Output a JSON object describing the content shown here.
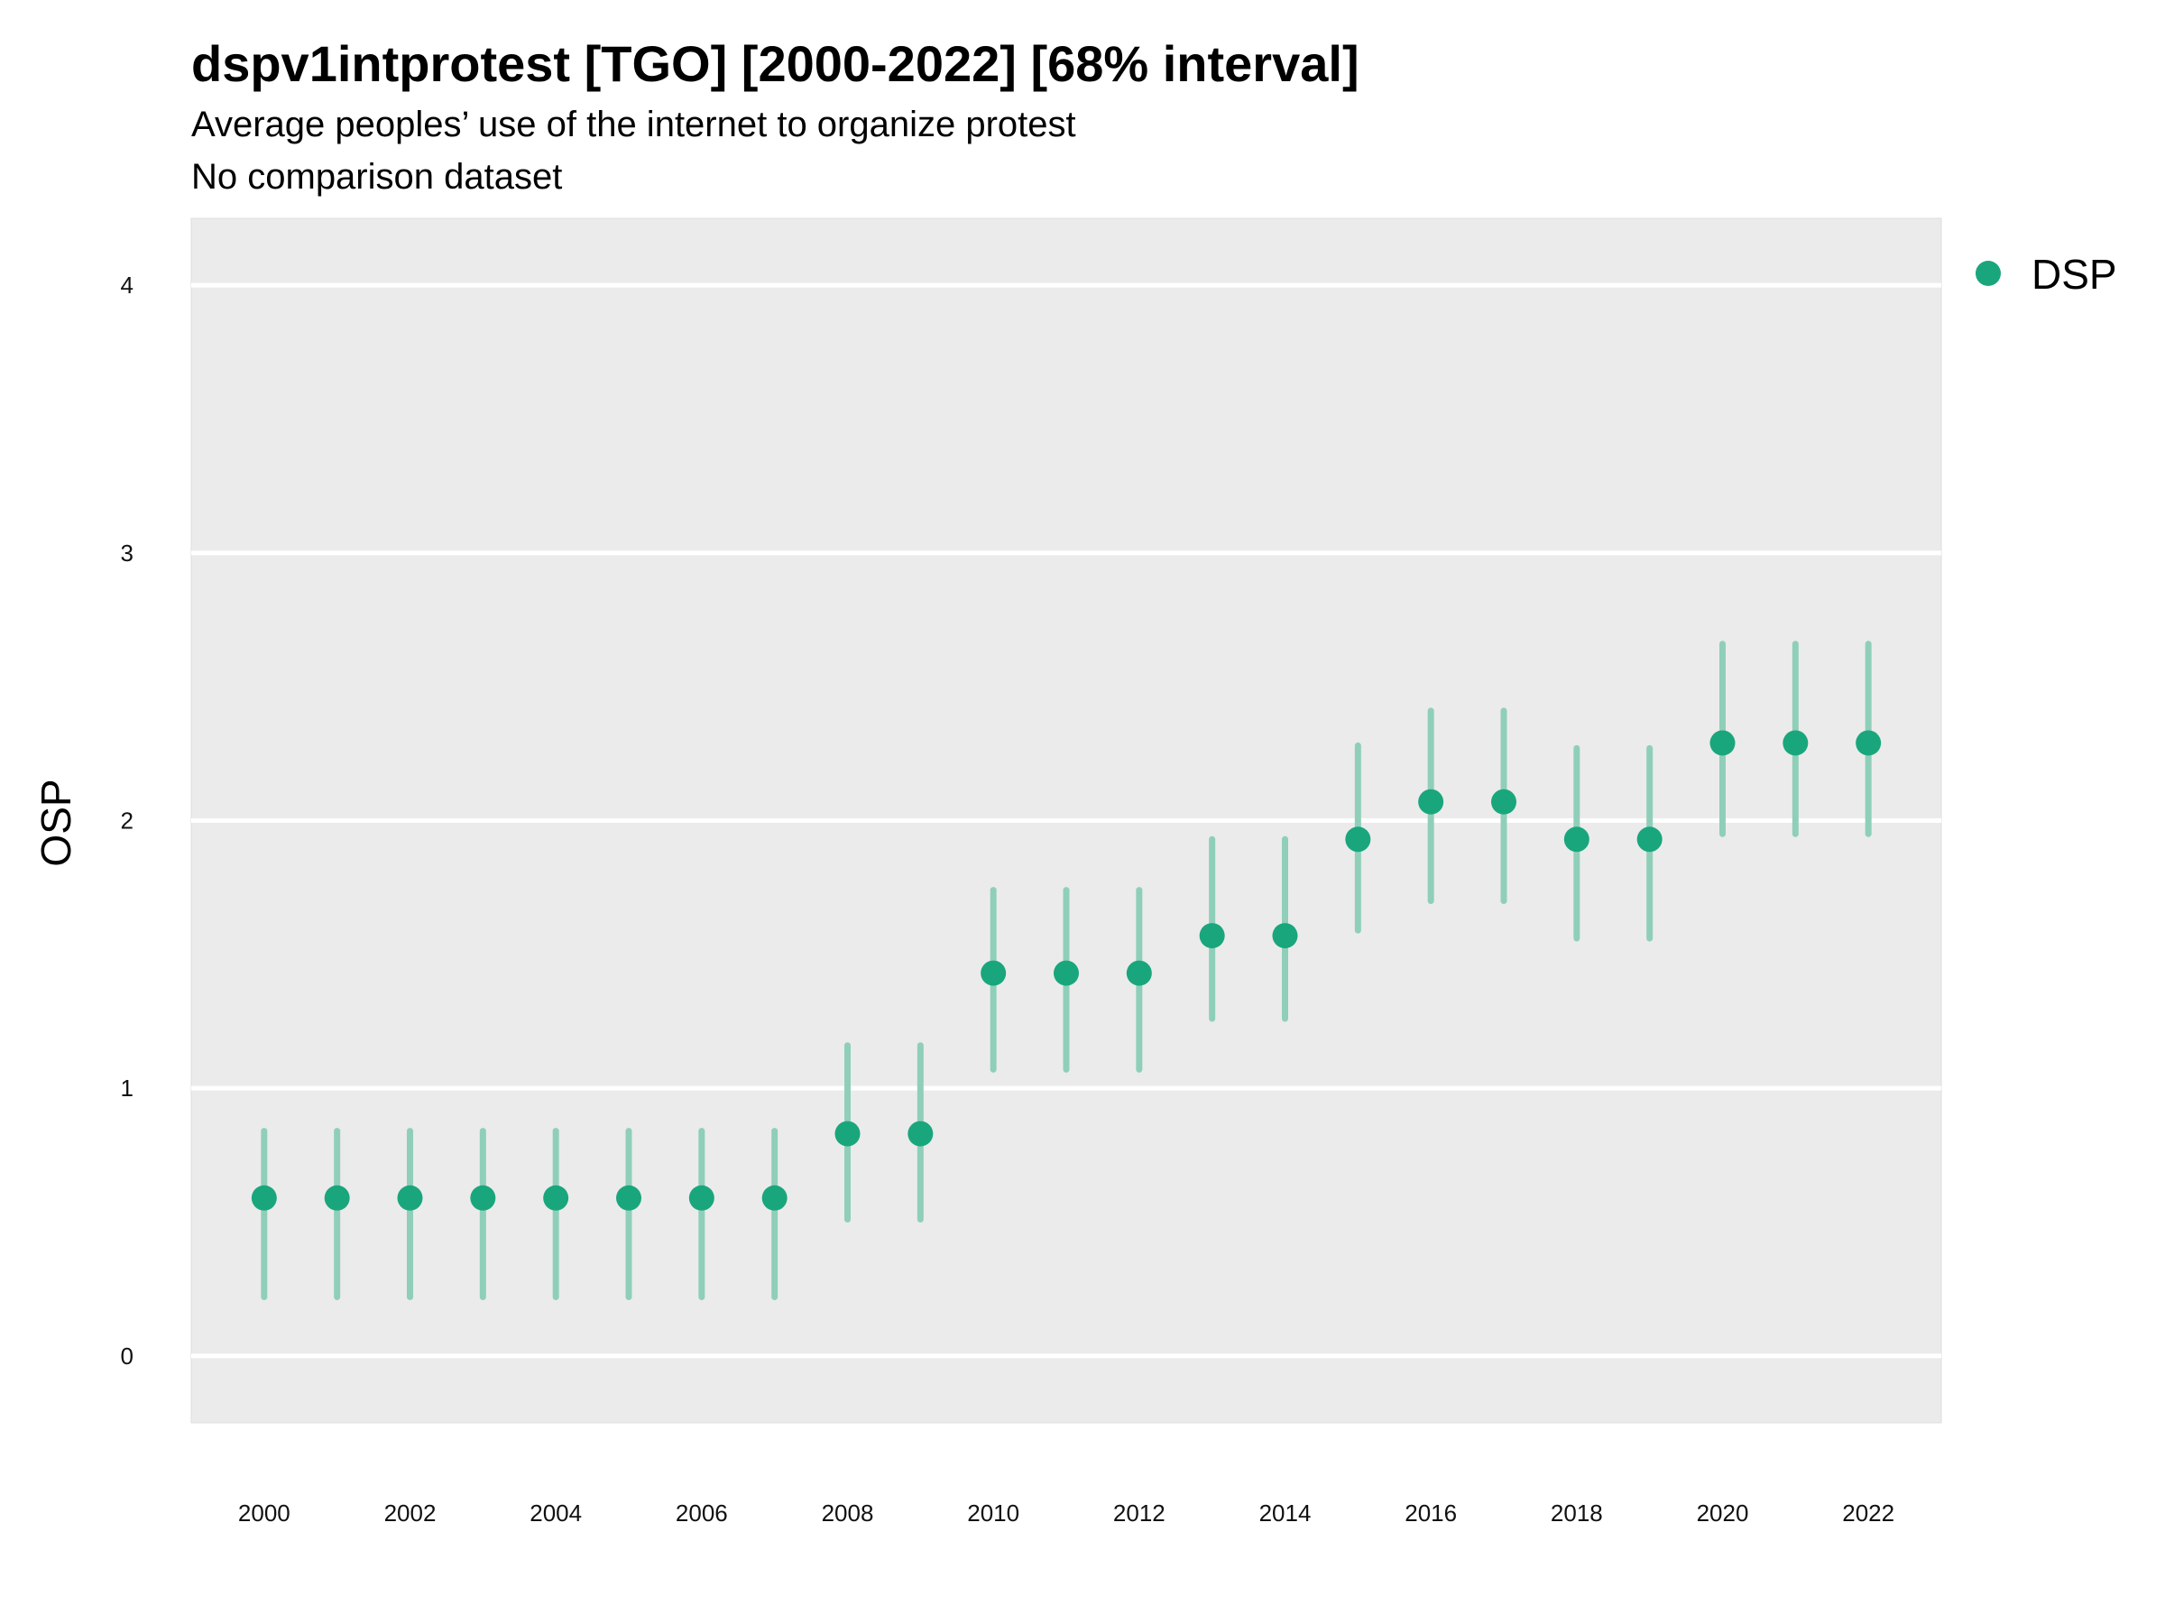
{
  "title": "dspv1intprotest [TGO] [2000-2022] [68% interval]",
  "subtitle": "Average peoples’ use of the internet to organize protest",
  "caption": "No comparison dataset",
  "chart_data": {
    "type": "scatter",
    "title": "dspv1intprotest [TGO] [2000-2022] [68% interval]",
    "xlabel": "",
    "ylabel": "OSP",
    "xlim": [
      1999,
      2023
    ],
    "ylim": [
      -0.25,
      4.25
    ],
    "x_ticks": [
      2000,
      2002,
      2004,
      2006,
      2008,
      2010,
      2012,
      2014,
      2016,
      2018,
      2020,
      2022
    ],
    "y_ticks": [
      0,
      1,
      2,
      3,
      4
    ],
    "grid": true,
    "legend_position": "top-right",
    "series": [
      {
        "name": "DSP",
        "color": "#1aa67c",
        "interval_color": "#8fcfba",
        "x": [
          2000,
          2001,
          2002,
          2003,
          2004,
          2005,
          2006,
          2007,
          2008,
          2009,
          2010,
          2011,
          2012,
          2013,
          2014,
          2015,
          2016,
          2017,
          2018,
          2019,
          2020,
          2021,
          2022
        ],
        "y": [
          0.59,
          0.59,
          0.59,
          0.59,
          0.59,
          0.59,
          0.59,
          0.59,
          0.83,
          0.83,
          1.43,
          1.43,
          1.43,
          1.57,
          1.57,
          1.93,
          2.07,
          2.07,
          1.93,
          1.93,
          2.29,
          2.29,
          2.29
        ],
        "lower": [
          0.22,
          0.22,
          0.22,
          0.22,
          0.22,
          0.22,
          0.22,
          0.22,
          0.51,
          0.51,
          1.07,
          1.07,
          1.07,
          1.26,
          1.26,
          1.59,
          1.7,
          1.7,
          1.56,
          1.56,
          1.95,
          1.95,
          1.95
        ],
        "upper": [
          0.84,
          0.84,
          0.84,
          0.84,
          0.84,
          0.84,
          0.84,
          0.84,
          1.16,
          1.16,
          1.74,
          1.74,
          1.74,
          1.93,
          1.93,
          2.28,
          2.41,
          2.41,
          2.27,
          2.27,
          2.66,
          2.66,
          2.66
        ]
      }
    ]
  }
}
